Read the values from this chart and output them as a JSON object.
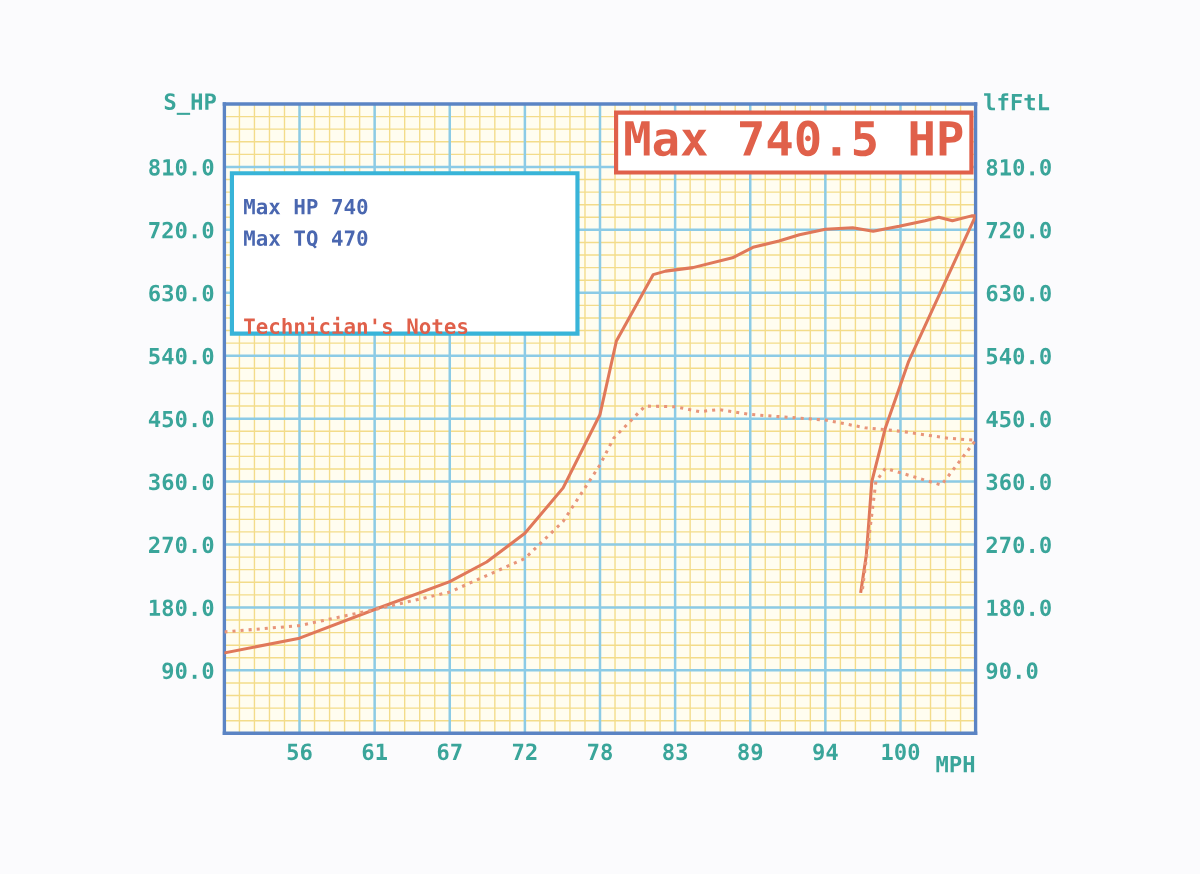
{
  "chart_data": {
    "type": "line",
    "title": "Max 740.5 HP",
    "xlabel": "MPH",
    "ylabel": "S_HP",
    "y2label": "lfFtL",
    "annotations": [
      "Max HP 740",
      "Max TQ 470",
      "Technician's Notes"
    ],
    "xlim": [
      50.5,
      105.5
    ],
    "xticks": [
      56,
      {
        "value": 61.5,
        "label": "61"
      },
      67,
      {
        "value": 72.5,
        "label": "72"
      },
      78,
      {
        "value": 83.5,
        "label": "83"
      },
      89,
      {
        "value": 94.5,
        "label": "94"
      },
      100
    ],
    "ylim": [
      0,
      900
    ],
    "yticks": [
      {
        "value": 90,
        "label": "90.0"
      },
      {
        "value": 180,
        "label": "180.0"
      },
      {
        "value": 270,
        "label": "270.0"
      },
      {
        "value": 360,
        "label": "360.0"
      },
      {
        "value": 450,
        "label": "450.0"
      },
      {
        "value": 540,
        "label": "540.0"
      },
      {
        "value": 630,
        "label": "630.0"
      },
      {
        "value": 720,
        "label": "720.0"
      },
      {
        "value": 810,
        "label": "810.0"
      }
    ],
    "y2lim": [
      0,
      900
    ],
    "y2ticks": [
      {
        "value": 90,
        "label": "90.0"
      },
      {
        "value": 180,
        "label": "180.0"
      },
      {
        "value": 270,
        "label": "270.0"
      },
      {
        "value": 360,
        "label": "360.0"
      },
      {
        "value": 450,
        "label": "450.0"
      },
      {
        "value": 540,
        "label": "540.0"
      },
      {
        "value": 630,
        "label": "630.0"
      },
      {
        "value": 720,
        "label": "720.0"
      },
      {
        "value": 810,
        "label": "810.0"
      }
    ],
    "grid": true,
    "marker": "none",
    "series": [
      {
        "color": "#e0785a",
        "line_style": "solid",
        "x": [
          50.5,
          56,
          61.5,
          67,
          69.7,
          72.5,
          75.3,
          78,
          79.2,
          81.9,
          82.8,
          84.8,
          87.7,
          89.2,
          91.1,
          92.6,
          94.5,
          96.5,
          98,
          99.9,
          101.8,
          102.8,
          103.8,
          105.2,
          105.5,
          100.6,
          98.9,
          97.9,
          97.5,
          97.1
        ],
        "values": [
          115,
          136,
          177,
          217,
          245,
          286,
          351,
          456,
          561,
          656,
          661,
          666,
          680,
          695,
          704,
          713,
          721,
          723,
          718,
          725,
          733,
          738,
          733,
          740,
          740,
          532,
          437,
          360,
          255,
          203
        ]
      },
      {
        "color": "#e8957a",
        "line_style": "dotted",
        "x": [
          50.5,
          56,
          61.5,
          67,
          72.5,
          75.3,
          78,
          79,
          80.2,
          81.3,
          83.5,
          85.3,
          86.7,
          89,
          94.5,
          97.4,
          100,
          103.5,
          105.5,
          103,
          98.9,
          98.2,
          97.2
        ],
        "values": [
          145,
          154,
          177,
          202,
          250,
          303,
          384,
          422,
          446,
          468,
          467,
          460,
          463,
          456,
          448,
          437,
          432,
          422,
          419,
          355,
          379,
          360,
          203
        ]
      }
    ]
  }
}
